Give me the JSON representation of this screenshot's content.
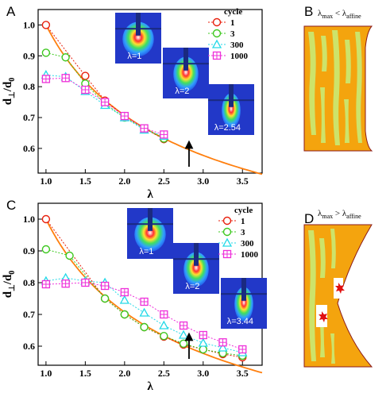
{
  "colors": {
    "fit_line": "#ff7f0e",
    "series": [
      "#e8200e",
      "#3ec820",
      "#25d9e8",
      "#ee2fd9"
    ],
    "schematic_orange": "#f4a40e",
    "schematic_green": "#cde36a",
    "schematic_border": "#8b1a1a",
    "crack_red": "#e01010"
  },
  "chart_data": [
    {
      "panel": "A",
      "type": "scatter",
      "xlabel": "λ",
      "ylabel_main": "d",
      "ylabel_sub1": "⊥",
      "ylabel_mid": "/d",
      "ylabel_sub2": "0",
      "xlim": [
        0.9,
        3.75
      ],
      "ylim": [
        0.52,
        1.05
      ],
      "xticks": [
        "1.0",
        "1.5",
        "2.0",
        "2.5",
        "3.0",
        "3.5"
      ],
      "yticks": [
        "0.6",
        "0.7",
        "0.8",
        "0.9",
        "1.0"
      ],
      "legend_title": "cycle",
      "arrow_x": 2.82,
      "fit": {
        "description_shown": false,
        "x0": 1.0,
        "x1": 3.75
      },
      "series": [
        {
          "name": "1",
          "marker": "circle",
          "x": [
            1.0,
            1.5,
            1.75,
            2.0,
            2.25,
            2.5
          ],
          "y": [
            1.0,
            0.835,
            0.755,
            0.705,
            0.665,
            0.63
          ]
        },
        {
          "name": "3",
          "marker": "circle",
          "x": [
            1.0,
            1.25,
            1.5,
            1.75,
            2.0,
            2.25,
            2.5
          ],
          "y": [
            0.91,
            0.895,
            0.81,
            0.745,
            0.7,
            0.665,
            0.632
          ]
        },
        {
          "name": "300",
          "marker": "triangle",
          "x": [
            1.0,
            1.25,
            1.5,
            1.75,
            2.0,
            2.25,
            2.5
          ],
          "y": [
            0.838,
            0.832,
            0.785,
            0.74,
            0.7,
            0.66,
            0.64
          ]
        },
        {
          "name": "1000",
          "marker": "square",
          "x": [
            1.0,
            1.25,
            1.5,
            1.75,
            2.0,
            2.25,
            2.5
          ],
          "y": [
            0.825,
            0.828,
            0.79,
            0.75,
            0.705,
            0.665,
            0.645
          ]
        }
      ],
      "insets": [
        "λ=1",
        "λ=2",
        "λ=2.54"
      ]
    },
    {
      "panel": "C",
      "type": "scatter",
      "xlabel": "λ",
      "ylabel_main": "d",
      "ylabel_sub1": "⊥",
      "ylabel_mid": "/d",
      "ylabel_sub2": "0",
      "xlim": [
        0.9,
        3.75
      ],
      "ylim": [
        0.54,
        1.05
      ],
      "xticks": [
        "1.0",
        "1.5",
        "2.0",
        "2.5",
        "3.0",
        "3.5"
      ],
      "yticks": [
        "0.6",
        "0.7",
        "0.8",
        "0.9",
        "1.0"
      ],
      "legend_title": "cycle",
      "arrow_x": 2.82,
      "series": [
        {
          "name": "1",
          "marker": "circle",
          "x": [
            1.0,
            1.75,
            2.0,
            2.25,
            2.5,
            2.75,
            3.0,
            3.25,
            3.5
          ],
          "y": [
            1.0,
            0.75,
            0.7,
            0.66,
            0.63,
            0.605,
            0.59,
            0.575,
            0.565
          ]
        },
        {
          "name": "3",
          "marker": "circle",
          "x": [
            1.0,
            1.3,
            1.75,
            2.0,
            2.25,
            2.5,
            2.75,
            3.0,
            3.25,
            3.5
          ],
          "y": [
            0.905,
            0.885,
            0.75,
            0.7,
            0.66,
            0.632,
            0.608,
            0.59,
            0.578,
            0.57
          ]
        },
        {
          "name": "300",
          "marker": "triangle",
          "x": [
            1.0,
            1.25,
            1.5,
            1.75,
            2.0,
            2.25,
            2.5,
            2.75,
            3.0,
            3.25,
            3.5
          ],
          "y": [
            0.805,
            0.815,
            0.805,
            0.8,
            0.745,
            0.705,
            0.665,
            0.635,
            0.61,
            0.595,
            0.58
          ]
        },
        {
          "name": "1000",
          "marker": "square",
          "x": [
            1.0,
            1.25,
            1.5,
            1.75,
            2.0,
            2.25,
            2.5,
            2.75,
            3.0,
            3.25,
            3.5
          ],
          "y": [
            0.795,
            0.797,
            0.8,
            0.79,
            0.77,
            0.74,
            0.7,
            0.665,
            0.635,
            0.612,
            0.59
          ]
        }
      ],
      "insets": [
        "λ=1",
        "λ=2",
        "λ=3.44"
      ]
    }
  ],
  "schematics": [
    {
      "panel": "B",
      "label_main": "λ",
      "label_sub1": "max",
      "label_op": " < λ",
      "label_sub2": "affine"
    },
    {
      "panel": "D",
      "label_main": "λ",
      "label_sub1": "max",
      "label_op": " > λ",
      "label_sub2": "affine"
    }
  ],
  "panel_letters": [
    "A",
    "B",
    "C",
    "D"
  ]
}
